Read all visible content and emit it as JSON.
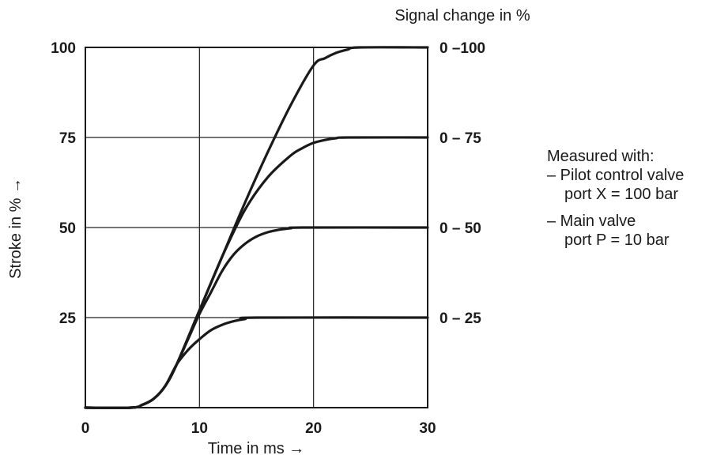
{
  "chart_data": {
    "type": "line",
    "title": "",
    "xlabel": "Time in ms →",
    "ylabel": "Stroke in % →",
    "y2label": "Signal change in %",
    "xlim": [
      0,
      30
    ],
    "ylim": [
      0,
      100
    ],
    "x_ticks": [
      "0",
      "10",
      "20",
      "30"
    ],
    "y_ticks": [
      "25",
      "50",
      "75",
      "100"
    ],
    "grid": true,
    "series": [
      {
        "name": "0 –100",
        "points": [
          [
            0,
            0
          ],
          [
            4,
            0
          ],
          [
            5,
            0.8
          ],
          [
            6,
            2.5
          ],
          [
            7,
            6
          ],
          [
            8,
            12
          ],
          [
            10,
            27
          ],
          [
            12,
            42
          ],
          [
            14,
            57
          ],
          [
            16,
            71
          ],
          [
            18,
            84
          ],
          [
            20,
            95
          ],
          [
            21,
            97
          ],
          [
            22,
            98.5
          ],
          [
            23,
            99.4
          ],
          [
            24,
            100
          ],
          [
            30,
            100
          ]
        ]
      },
      {
        "name": "0 – 75",
        "points": [
          [
            0,
            0
          ],
          [
            4,
            0
          ],
          [
            5,
            0.8
          ],
          [
            6,
            2.5
          ],
          [
            7,
            6
          ],
          [
            8,
            12
          ],
          [
            10,
            27
          ],
          [
            12,
            42
          ],
          [
            14,
            55
          ],
          [
            16,
            64
          ],
          [
            18,
            70
          ],
          [
            19,
            72
          ],
          [
            20,
            73.5
          ],
          [
            21,
            74.3
          ],
          [
            22,
            74.8
          ],
          [
            23,
            75
          ],
          [
            30,
            75
          ]
        ]
      },
      {
        "name": "0 – 50",
        "points": [
          [
            0,
            0
          ],
          [
            4,
            0
          ],
          [
            5,
            0.8
          ],
          [
            6,
            2.5
          ],
          [
            7,
            6
          ],
          [
            8,
            12
          ],
          [
            9,
            19
          ],
          [
            10,
            26
          ],
          [
            11,
            32
          ],
          [
            12,
            38
          ],
          [
            13,
            42.5
          ],
          [
            14,
            45.5
          ],
          [
            15,
            47.5
          ],
          [
            16,
            48.7
          ],
          [
            17,
            49.4
          ],
          [
            18,
            49.8
          ],
          [
            19,
            50
          ],
          [
            30,
            50
          ]
        ]
      },
      {
        "name": "0 – 25",
        "points": [
          [
            0,
            0
          ],
          [
            4,
            0
          ],
          [
            5,
            0.8
          ],
          [
            6,
            2.5
          ],
          [
            7,
            6
          ],
          [
            8,
            12
          ],
          [
            9,
            16
          ],
          [
            10,
            19
          ],
          [
            11,
            21.5
          ],
          [
            12,
            23
          ],
          [
            13,
            24
          ],
          [
            14,
            24.6
          ],
          [
            15,
            25
          ],
          [
            30,
            25
          ]
        ]
      }
    ],
    "annotation": {
      "heading": "Measured with:",
      "items": [
        {
          "line1": "– Pilot control valve",
          "line2": "port X = 100 bar"
        },
        {
          "line1": "– Main valve",
          "line2": "port P = 10 bar"
        }
      ]
    }
  }
}
